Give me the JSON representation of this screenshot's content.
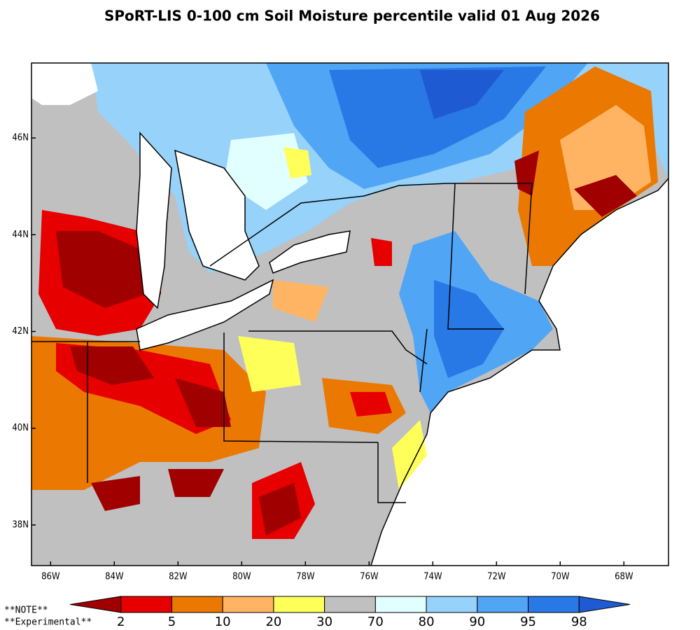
{
  "title": "SPoRT-LIS 0-100 cm Soil Moisture percentile valid 01 Aug 2026",
  "map": {
    "xlim": [
      -86.6,
      -66.6
    ],
    "ylim": [
      37.16,
      47.55
    ],
    "xticks": [
      {
        "value": -86,
        "label": "86W"
      },
      {
        "value": -84,
        "label": "84W"
      },
      {
        "value": -82,
        "label": "82W"
      },
      {
        "value": -80,
        "label": "80W"
      },
      {
        "value": -78,
        "label": "78W"
      },
      {
        "value": -76,
        "label": "76W"
      },
      {
        "value": -74,
        "label": "74W"
      },
      {
        "value": -72,
        "label": "72W"
      },
      {
        "value": -70,
        "label": "70W"
      },
      {
        "value": -68,
        "label": "68W"
      }
    ],
    "yticks": [
      {
        "value": 38,
        "label": "38N"
      },
      {
        "value": 40,
        "label": "40N"
      },
      {
        "value": 42,
        "label": "42N"
      },
      {
        "value": 44,
        "label": "44N"
      },
      {
        "value": 46,
        "label": "46N"
      }
    ]
  },
  "colorbar": {
    "bounds": [
      2,
      5,
      10,
      20,
      30,
      70,
      80,
      90,
      95,
      98
    ],
    "colors": [
      "#a00000",
      "#e60000",
      "#eb7800",
      "#ffb464",
      "#ffff5a",
      "#c0c0c0",
      "#e1ffff",
      "#96d2fa",
      "#50a5f5",
      "#2878e6",
      "#1e5ad2"
    ]
  },
  "notes": [
    "**NOTE**",
    "**Experimental**"
  ]
}
